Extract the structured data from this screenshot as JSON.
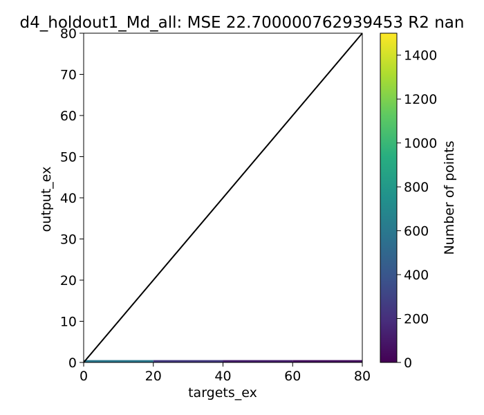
{
  "chart_data": {
    "type": "heatmap",
    "title": "d4_holdout1_Md_all: MSE 22.700000762939453 R2 nan",
    "xlabel": "targets_ex",
    "ylabel": "output_ex",
    "xlim": [
      0,
      80
    ],
    "ylim": [
      0,
      80
    ],
    "xticks": [
      0,
      20,
      40,
      60,
      80
    ],
    "yticks": [
      0,
      10,
      20,
      30,
      40,
      50,
      60,
      70,
      80
    ],
    "reference_line": {
      "x": [
        0,
        80
      ],
      "y": [
        0,
        80
      ],
      "color": "#000000"
    },
    "density_band": {
      "x_range": [
        0,
        80
      ],
      "y_range": [
        0,
        0.4
      ],
      "description_counts": [
        {
          "x": [
            0,
            20
          ],
          "count": 600
        },
        {
          "x": [
            20,
            40
          ],
          "count": 250
        },
        {
          "x": [
            40,
            60
          ],
          "count": 120
        },
        {
          "x": [
            60,
            80
          ],
          "count": 60
        }
      ]
    },
    "colorbar": {
      "label": "Number of points",
      "range": [
        0,
        1500
      ],
      "ticks": [
        0,
        200,
        400,
        600,
        800,
        1000,
        1200,
        1400
      ],
      "colormap": "viridis"
    },
    "grid": false
  }
}
